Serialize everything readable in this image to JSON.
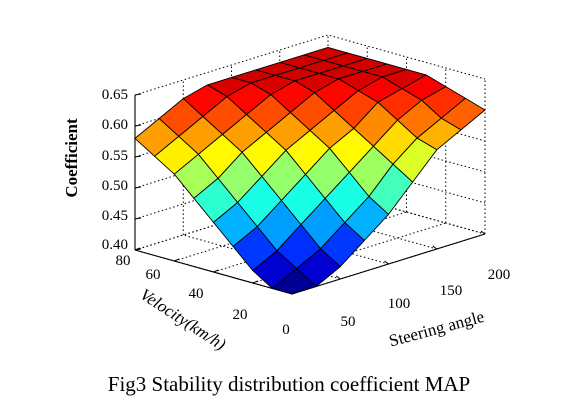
{
  "caption": "Fig3 Stability distribution coefficient MAP",
  "chart_data": {
    "type": "surface3d",
    "title": "",
    "zlabel": "Coefficient",
    "ylabel": "Velocity(km/h)",
    "xlabel": "Steering angle",
    "zlim": [
      0.4,
      0.65
    ],
    "z_ticks": [
      "0.65",
      "0.60",
      "0.55",
      "0.50",
      "0.45",
      "0.40"
    ],
    "x_ticks": [
      "50",
      "100",
      "150",
      "200"
    ],
    "y_ticks": [
      "80",
      "60",
      "40",
      "20",
      "0"
    ],
    "grid": true,
    "colormap": "jet",
    "x_values": [
      0,
      25,
      50,
      75,
      100,
      125,
      150,
      175,
      200
    ],
    "y_values": [
      0,
      10,
      20,
      30,
      40,
      50,
      60,
      70,
      80
    ],
    "z_values": [
      [
        0.4,
        0.4,
        0.42,
        0.45,
        0.48,
        0.52,
        0.56,
        0.58,
        0.6
      ],
      [
        0.4,
        0.42,
        0.44,
        0.47,
        0.5,
        0.54,
        0.57,
        0.59,
        0.61
      ],
      [
        0.42,
        0.44,
        0.47,
        0.5,
        0.53,
        0.56,
        0.59,
        0.61,
        0.62
      ],
      [
        0.45,
        0.47,
        0.5,
        0.53,
        0.56,
        0.58,
        0.61,
        0.62,
        0.63
      ],
      [
        0.48,
        0.5,
        0.53,
        0.56,
        0.58,
        0.6,
        0.62,
        0.63,
        0.63
      ],
      [
        0.51,
        0.53,
        0.56,
        0.58,
        0.6,
        0.62,
        0.63,
        0.63,
        0.63
      ],
      [
        0.54,
        0.56,
        0.58,
        0.6,
        0.62,
        0.63,
        0.63,
        0.63,
        0.63
      ],
      [
        0.56,
        0.58,
        0.6,
        0.62,
        0.63,
        0.63,
        0.63,
        0.63,
        0.63
      ],
      [
        0.58,
        0.6,
        0.62,
        0.63,
        0.63,
        0.63,
        0.63,
        0.63,
        0.63
      ]
    ]
  }
}
